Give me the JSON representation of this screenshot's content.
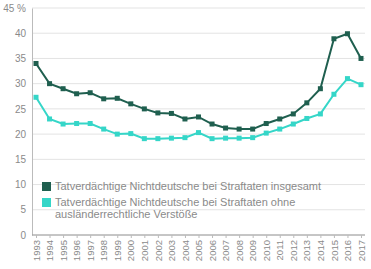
{
  "chart_data": {
    "type": "line",
    "categories": [
      "1993",
      "1994",
      "1995",
      "1996",
      "1997",
      "1998",
      "1999",
      "2000",
      "2001",
      "2002",
      "2003",
      "2004",
      "2005",
      "2006",
      "2007",
      "2008",
      "2009",
      "2010",
      "2011",
      "2012",
      "2013",
      "2014",
      "2015",
      "2016",
      "2017"
    ],
    "series": [
      {
        "name": "Tatverdächtige Nichtdeutsche bei Straftaten insgesamt",
        "color": "#1f5f4f",
        "marker": "square",
        "line_style": "solid",
        "values": [
          34,
          30,
          29,
          28,
          28.2,
          27,
          27.1,
          26,
          25,
          24.2,
          24.1,
          23,
          23.4,
          22,
          21.2,
          21,
          21,
          22.1,
          23,
          24,
          26.2,
          29,
          38.9,
          39.9,
          35
        ]
      },
      {
        "name": "Tatverdächtige Nichtdeutsche bei Straftaten ohne ausländerrechtliche Verstöße",
        "color": "#35d6c8",
        "marker": "square",
        "line_style": "solid",
        "values": [
          27.3,
          23,
          22,
          22.1,
          22.1,
          21,
          20,
          20.1,
          19.1,
          19.1,
          19.2,
          19.3,
          20.3,
          19.1,
          19.2,
          19.2,
          19.3,
          20.2,
          21,
          22,
          23.1,
          24,
          27.9,
          31,
          29.8
        ]
      }
    ],
    "ylim": [
      0,
      45
    ],
    "yticks": [
      0,
      5,
      10,
      15,
      20,
      25,
      30,
      35,
      40,
      {
        "value": 45,
        "label": "45 %"
      }
    ],
    "grid": true,
    "legend": "lower left"
  }
}
